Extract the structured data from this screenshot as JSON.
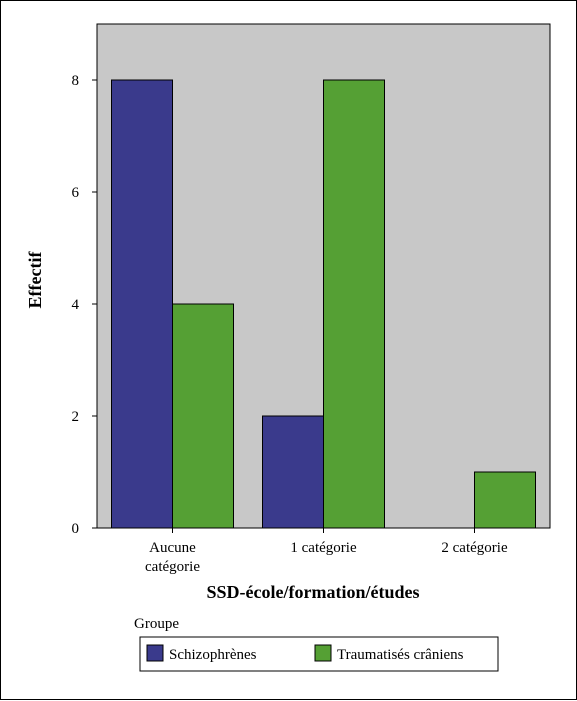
{
  "chart_data": {
    "type": "bar",
    "title": "",
    "xlabel": "SSD-école/formation/études",
    "ylabel": "Effectif",
    "ylim": [
      0,
      9
    ],
    "yticks": [
      0,
      2,
      4,
      6,
      8
    ],
    "categories": [
      [
        "Aucune",
        "catégorie"
      ],
      [
        "1 catégorie"
      ],
      [
        "2 catégorie"
      ]
    ],
    "series": [
      {
        "name": "Schizophrènes",
        "values": [
          8,
          2,
          0
        ],
        "color": "#3a3a8c"
      },
      {
        "name": "Traumatisés crâniens",
        "values": [
          4,
          8,
          1
        ],
        "color": "#55a034"
      }
    ],
    "legend_title": "Groupe",
    "legend_position": "bottom-center",
    "plot_background": "#c8c8c8",
    "grid": false
  }
}
